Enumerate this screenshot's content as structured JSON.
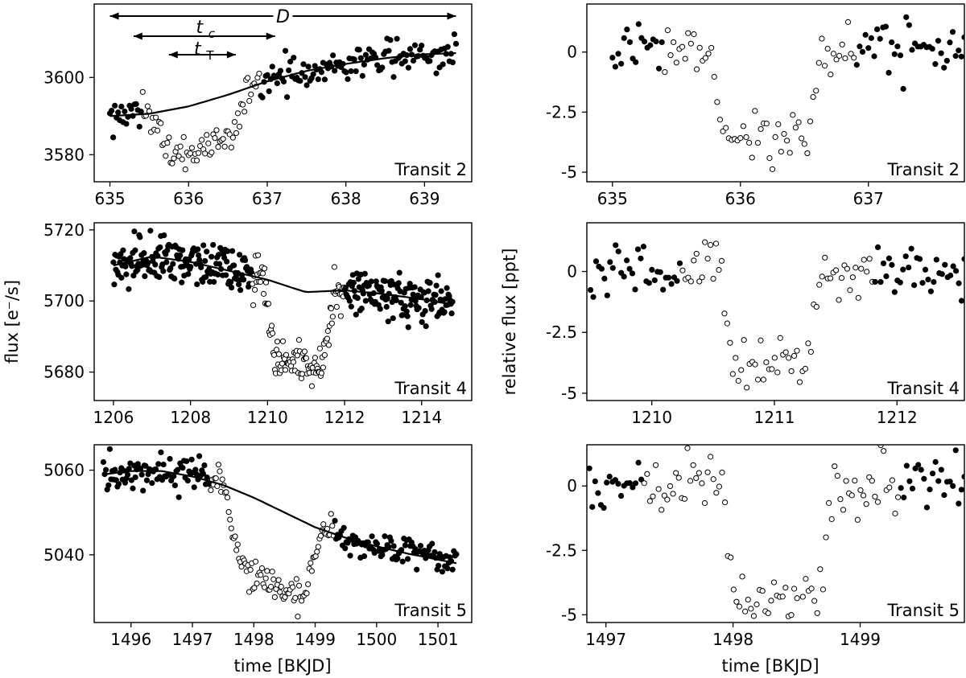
{
  "figure": {
    "xlabel": "time [BKJD]",
    "ylabel_left": "flux [e⁻/s]",
    "ylabel_right": "relative flux [ppt]"
  },
  "chart_data": [
    {
      "type": "scatter",
      "id": "left-transit-2",
      "label": "Transit 2",
      "xlim": [
        634.8,
        639.6
      ],
      "ylim": [
        3573,
        3619
      ],
      "xticks": [
        635,
        636,
        637,
        638,
        639
      ],
      "yticks": [
        3580,
        3600
      ],
      "trend": [
        [
          635.0,
          3590.0
        ],
        [
          635.5,
          3590.6
        ],
        [
          636.0,
          3592.5
        ],
        [
          636.5,
          3595.5
        ],
        [
          637.0,
          3599.0
        ],
        [
          637.5,
          3601.7
        ],
        [
          638.0,
          3603.5
        ],
        [
          638.5,
          3605.0
        ],
        [
          639.0,
          3606.0
        ],
        [
          639.4,
          3606.3
        ]
      ],
      "transit_window": [
        635.4,
        636.9
      ],
      "transit_dip": -12,
      "noise": 2.2,
      "annotations": {
        "D": {
          "text": "D",
          "from": 635.0,
          "to": 639.4
        },
        "tc": {
          "text": "t",
          "sub": "c",
          "from": 635.3,
          "to": 637.1
        },
        "tT": {
          "text": "t",
          "sub": "T",
          "from": 635.75,
          "to": 636.6
        }
      }
    },
    {
      "type": "scatter",
      "id": "right-transit-2",
      "label": "Transit 2",
      "xlim": [
        634.8,
        637.75
      ],
      "ylim": [
        -5.4,
        2.0
      ],
      "xticks": [
        635,
        636,
        637
      ],
      "yticks": [
        0,
        -2.5,
        -5
      ],
      "ytick_labels": [
        "0",
        "-2.5",
        "-5"
      ],
      "xrange": [
        635.0,
        637.75
      ],
      "transit_window": [
        635.4,
        636.9
      ],
      "in_transit": [
        635.8,
        636.6
      ],
      "depth": -3.7,
      "noise": 0.55
    },
    {
      "type": "scatter",
      "id": "left-transit-4",
      "label": "Transit 4",
      "xlim": [
        1205.5,
        1215.3
      ],
      "ylim": [
        5672,
        5722
      ],
      "xticks": [
        1206,
        1208,
        1210,
        1212,
        1214
      ],
      "yticks": [
        5680,
        5700,
        5720
      ],
      "trend": [
        [
          1206.0,
          5710.0
        ],
        [
          1207.0,
          5712.5
        ],
        [
          1208.0,
          5711.0
        ],
        [
          1209.0,
          5708.5
        ],
        [
          1210.0,
          5706.0
        ],
        [
          1210.7,
          5703.5
        ],
        [
          1211.0,
          5702.5
        ],
        [
          1212.0,
          5703.0
        ],
        [
          1213.0,
          5702.0
        ],
        [
          1214.0,
          5700.5
        ],
        [
          1214.8,
          5699.0
        ]
      ],
      "transit_window": [
        1209.6,
        1212.0
      ],
      "transit_dip": -21,
      "noise": 3.3
    },
    {
      "type": "scatter",
      "id": "right-transit-4",
      "label": "Transit 4",
      "xlim": [
        1209.47,
        1212.55
      ],
      "ylim": [
        -5.3,
        2.0
      ],
      "xticks": [
        1210,
        1211,
        1212
      ],
      "yticks": [
        0,
        -2.5,
        -5
      ],
      "ytick_labels": [
        "0",
        "-2.5",
        "-5"
      ],
      "xrange": [
        1209.5,
        1212.55
      ],
      "transit_window": [
        1210.25,
        1211.8
      ],
      "in_transit": [
        1210.6,
        1211.35
      ],
      "depth": -3.9,
      "noise": 0.55
    },
    {
      "type": "scatter",
      "id": "left-transit-5",
      "label": "Transit 5",
      "xlim": [
        1495.4,
        1501.55
      ],
      "ylim": [
        5024,
        5066
      ],
      "xticks": [
        1496,
        1497,
        1498,
        1499,
        1500,
        1501
      ],
      "yticks": [
        5040,
        5060
      ],
      "trend": [
        [
          1495.55,
          5059.0
        ],
        [
          1496.0,
          5059.8
        ],
        [
          1496.5,
          5059.8
        ],
        [
          1497.0,
          5058.5
        ],
        [
          1497.5,
          5056.5
        ],
        [
          1498.0,
          5053.5
        ],
        [
          1498.5,
          5050.0
        ],
        [
          1499.0,
          5046.5
        ],
        [
          1499.5,
          5044.0
        ],
        [
          1500.0,
          5042.0
        ],
        [
          1500.5,
          5040.3
        ],
        [
          1501.3,
          5038.0
        ]
      ],
      "transit_window": [
        1497.3,
        1499.3
      ],
      "transit_dip": -18,
      "noise": 1.9
    },
    {
      "type": "scatter",
      "id": "right-transit-5",
      "label": "Transit 5",
      "xlim": [
        1496.85,
        1499.82
      ],
      "ylim": [
        -5.3,
        1.6
      ],
      "xticks": [
        1497,
        1498,
        1499
      ],
      "yticks": [
        0,
        -2.5,
        -5
      ],
      "ytick_labels": [
        "0",
        "-2.5",
        "-5"
      ],
      "xrange": [
        1496.87,
        1499.82
      ],
      "transit_window": [
        1497.3,
        1499.3
      ],
      "in_transit": [
        1497.95,
        1498.75
      ],
      "depth": -4.5,
      "noise": 0.55
    }
  ]
}
